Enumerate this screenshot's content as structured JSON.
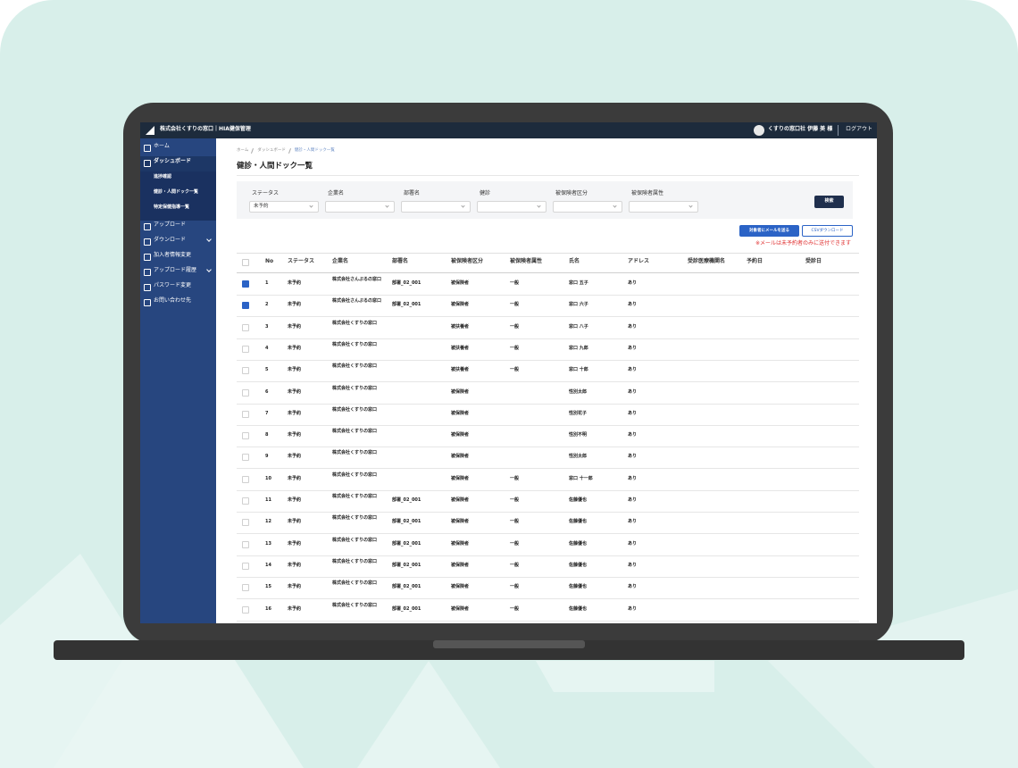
{
  "header": {
    "app_title": "株式会社くすりの窓口｜HIA健保管理",
    "user": "くすりの窓口社 伊藤 美 様",
    "logout": "ログアウト"
  },
  "sidebar": {
    "items": [
      {
        "label": "ホーム"
      },
      {
        "label": "ダッシュボード",
        "active": true,
        "children": [
          "進捗確認",
          "健診・人間ドック一覧",
          "特定保健指導一覧"
        ]
      },
      {
        "label": "アップロード"
      },
      {
        "label": "ダウンロード",
        "expandable": true
      },
      {
        "label": "加入者情報変更"
      },
      {
        "label": "アップロード履歴",
        "expandable": true
      },
      {
        "label": "パスワード変更"
      },
      {
        "label": "お問い合わせ先"
      }
    ]
  },
  "breadcrumb": [
    "ホーム",
    "ダッシュボード",
    "健診・人間ドック一覧"
  ],
  "page_title": "健診・人間ドック一覧",
  "filters": [
    {
      "label": "ステータス",
      "value": "未予約"
    },
    {
      "label": "企業名"
    },
    {
      "label": "部署名"
    },
    {
      "label": "健診"
    },
    {
      "label": "被保険者区分"
    },
    {
      "label": "被保険者属性"
    }
  ],
  "search_button": "検索",
  "actions": {
    "mail_button": "対象者にメールを送る",
    "csv_button": "CSVダウンロード",
    "note": "※メールは未予約者のみに送付できます"
  },
  "table": {
    "columns": [
      "No",
      "ステータス",
      "企業名",
      "部署名",
      "被保険者区分",
      "被保険者属性",
      "氏名",
      "アドレス",
      "受診医療機関名",
      "予約日",
      "受診日"
    ],
    "rows": [
      {
        "checked": true,
        "cells": [
          1,
          "未予約",
          "株式会社さんぷるの窓口",
          "部署_02_001",
          "被保険者",
          "一般",
          "窓口 五子",
          "あり"
        ]
      },
      {
        "checked": true,
        "cells": [
          2,
          "未予約",
          "株式会社さんぷるの窓口",
          "部署_02_001",
          "被保険者",
          "一般",
          "窓口 六子",
          "あり"
        ]
      },
      {
        "checked": false,
        "cells": [
          3,
          "未予約",
          "株式会社くすりの窓口",
          null,
          "被扶養者",
          "一般",
          "窓口 八子",
          "あり"
        ]
      },
      {
        "checked": false,
        "cells": [
          4,
          "未予約",
          "株式会社くすりの窓口",
          null,
          "被扶養者",
          "一般",
          "窓口 九郎",
          "あり"
        ]
      },
      {
        "checked": false,
        "cells": [
          5,
          "未予約",
          "株式会社くすりの窓口",
          null,
          "被扶養者",
          "一般",
          "窓口 十郎",
          "あり"
        ]
      },
      {
        "checked": false,
        "cells": [
          6,
          "未予約",
          "株式会社くすりの窓口",
          null,
          "被保険者",
          null,
          "性別太郎",
          "あり"
        ]
      },
      {
        "checked": false,
        "cells": [
          7,
          "未予約",
          "株式会社くすりの窓口",
          null,
          "被保険者",
          null,
          "性別花子",
          "あり"
        ]
      },
      {
        "checked": false,
        "cells": [
          8,
          "未予約",
          "株式会社くすりの窓口",
          null,
          "被保険者",
          null,
          "性別不明",
          "あり"
        ]
      },
      {
        "checked": false,
        "cells": [
          9,
          "未予約",
          "株式会社くすりの窓口",
          null,
          "被保険者",
          null,
          "性別太郎",
          "あり"
        ]
      },
      {
        "checked": false,
        "cells": [
          10,
          "未予約",
          "株式会社くすりの窓口",
          null,
          "被保険者",
          "一般",
          "窓口 十一郎",
          "あり"
        ]
      },
      {
        "checked": false,
        "cells": [
          11,
          "未予約",
          "株式会社くすりの窓口",
          "部署_02_001",
          "被保険者",
          "一般",
          "佐藤優也",
          "あり"
        ]
      },
      {
        "checked": false,
        "cells": [
          12,
          "未予約",
          "株式会社くすりの窓口",
          "部署_02_001",
          "被保険者",
          "一般",
          "佐藤優也",
          "あり"
        ]
      },
      {
        "checked": false,
        "cells": [
          13,
          "未予約",
          "株式会社くすりの窓口",
          "部署_02_001",
          "被保険者",
          "一般",
          "佐藤優也",
          "あり"
        ]
      },
      {
        "checked": false,
        "cells": [
          14,
          "未予約",
          "株式会社くすりの窓口",
          "部署_02_001",
          "被保険者",
          "一般",
          "佐藤優也",
          "あり"
        ]
      },
      {
        "checked": false,
        "cells": [
          15,
          "未予約",
          "株式会社くすりの窓口",
          "部署_02_001",
          "被保険者",
          "一般",
          "佐藤優也",
          "あり"
        ]
      },
      {
        "checked": false,
        "cells": [
          16,
          "未予約",
          "株式会社くすりの窓口",
          "部署_02_001",
          "被保険者",
          "一般",
          "佐藤優也",
          "あり"
        ]
      }
    ]
  }
}
